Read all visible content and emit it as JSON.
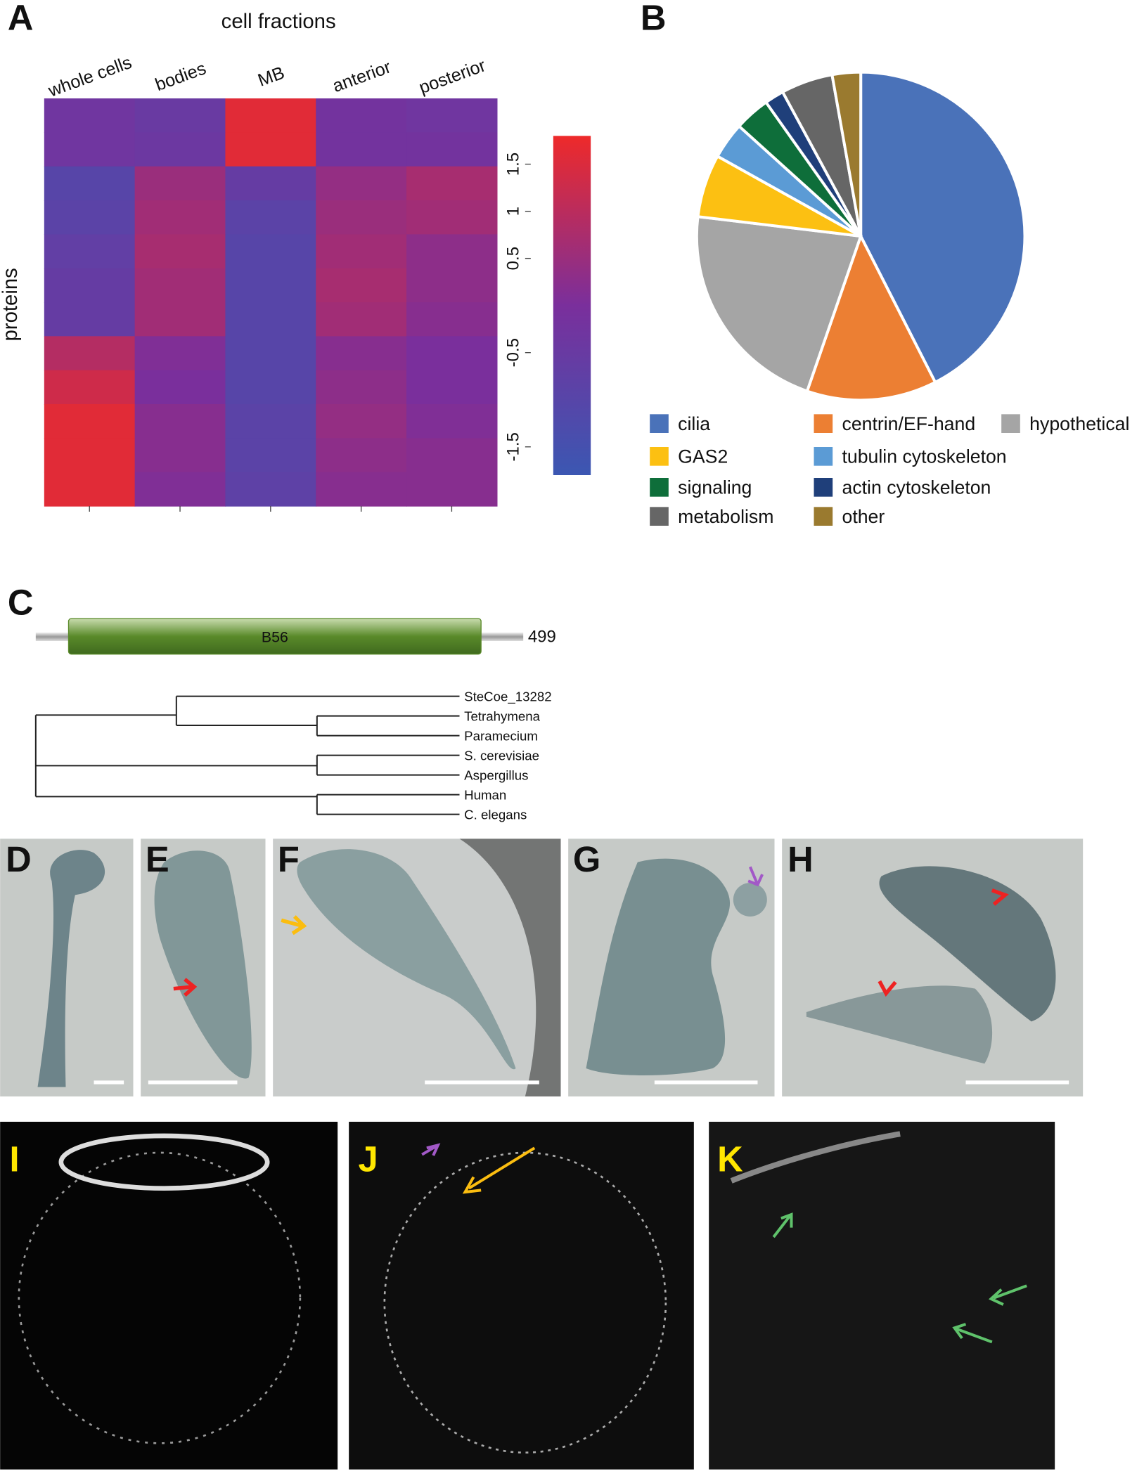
{
  "panel_labels": [
    "A",
    "B",
    "C",
    "D",
    "E",
    "F",
    "G",
    "H",
    "I",
    "J",
    "K"
  ],
  "chart_data": [
    {
      "type": "heatmap",
      "title": "cell fractions",
      "y_label": "proteins",
      "categories": [
        "whole cells",
        "bodies",
        "MB",
        "anterior",
        "posterior"
      ],
      "values": [
        [
          -0.3,
          -0.5,
          1.6,
          -0.2,
          -0.3
        ],
        [
          -0.3,
          -0.4,
          1.6,
          -0.2,
          -0.2
        ],
        [
          -1.0,
          0.5,
          -0.6,
          0.4,
          0.7
        ],
        [
          -0.9,
          0.6,
          -0.9,
          0.5,
          0.6
        ],
        [
          -0.7,
          0.7,
          -1.0,
          0.6,
          0.3
        ],
        [
          -0.6,
          0.6,
          -1.0,
          0.7,
          0.3
        ],
        [
          -0.6,
          0.6,
          -1.0,
          0.6,
          0.2
        ],
        [
          0.9,
          0.1,
          -1.0,
          0.2,
          0.0
        ],
        [
          1.3,
          0.0,
          -1.0,
          0.3,
          0.0
        ],
        [
          1.6,
          0.2,
          -0.9,
          0.4,
          0.1
        ],
        [
          1.6,
          0.2,
          -0.9,
          0.3,
          0.2
        ],
        [
          1.6,
          0.1,
          -0.8,
          0.2,
          0.2
        ]
      ],
      "colors": [
        "#3b57b2",
        "#7a2f9c",
        "#ee2a2a"
      ],
      "zlim": [
        -1.8,
        1.8
      ],
      "zticks": [
        1.5,
        1.0,
        0.5,
        -0.5,
        -1.5
      ]
    },
    {
      "type": "pie",
      "categories": [
        "cilia",
        "centrin/EF-hand",
        "hypothetical",
        "GAS2",
        "tubulin cytoskeleton",
        "signaling",
        "actin cytoskeleton",
        "metabolism",
        "other"
      ],
      "values": [
        42.5,
        12.8,
        21.6,
        6.2,
        3.6,
        3.5,
        1.9,
        5.1,
        2.8
      ],
      "colors": [
        "#4a72b9",
        "#ec7f33",
        "#a5a5a5",
        "#fcc012",
        "#5b9bd5",
        "#0e6e3a",
        "#1f3f7a",
        "#666666",
        "#9a7a2f"
      ]
    }
  ],
  "domain": {
    "label": "B56",
    "length": "499"
  },
  "tree": {
    "leaves": [
      "SteCoe_13282",
      "Tetrahymena",
      "Paramecium",
      "S. cerevisiae",
      "Aspergillus",
      "Human",
      "C. elegans"
    ]
  }
}
